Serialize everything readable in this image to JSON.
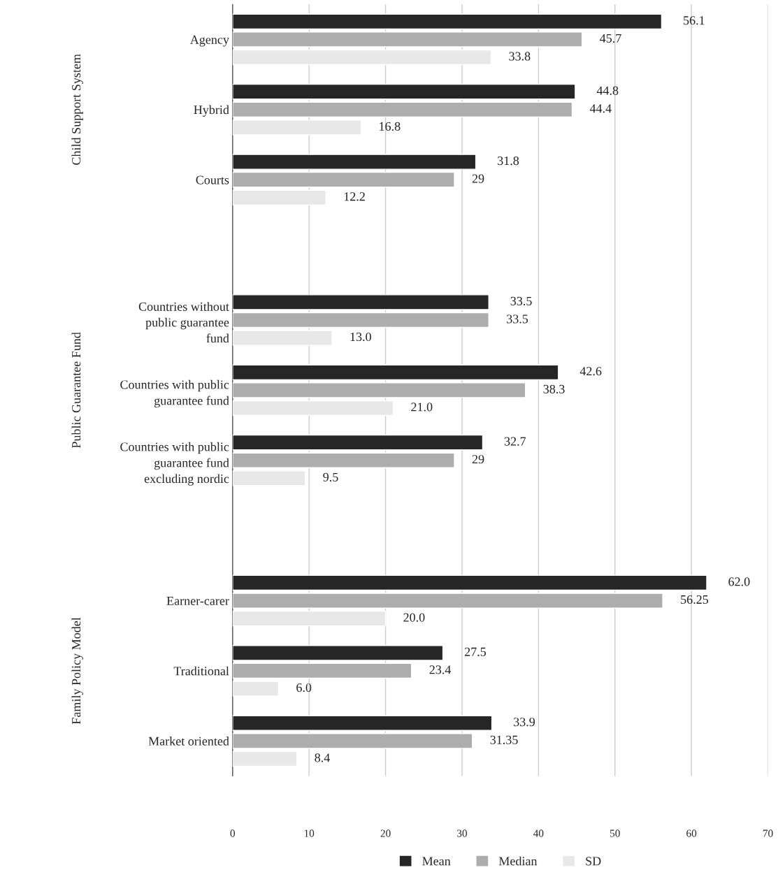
{
  "chart_data": {
    "type": "bar",
    "orientation": "horizontal",
    "categories": [
      "Agency",
      "Hybrid",
      "Courts",
      null,
      "Countries without\npublic guarantee\nfund",
      "Countries with public\nguarantee fund",
      "Countries with public\nguarantee fund\nexcluding nordic",
      null,
      "Earner-carer",
      "Traditional",
      "Market oriented"
    ],
    "series": [
      {
        "name": "Mean",
        "color": "#262626",
        "values": [
          56.1,
          44.8,
          31.8,
          null,
          33.5,
          42.6,
          32.7,
          null,
          62.0,
          27.5,
          33.9
        ],
        "value_labels": [
          "56.1",
          "44.8",
          "31.8",
          null,
          "33.5",
          "42.6",
          "32.7",
          null,
          "62.0",
          "27.5",
          "33.9"
        ]
      },
      {
        "name": "Median",
        "color": "#adadad",
        "values": [
          45.7,
          44.4,
          29,
          null,
          33.5,
          38.3,
          29,
          null,
          56.25,
          23.4,
          31.35
        ],
        "value_labels": [
          "45.7",
          "44.4",
          "29",
          null,
          "33.5",
          "38.3",
          "29",
          null,
          "56.25",
          "23.4",
          "31.35"
        ]
      },
      {
        "name": "SD",
        "color": "#e8e8e8",
        "values": [
          33.8,
          16.8,
          12.2,
          null,
          13.0,
          21.0,
          9.5,
          null,
          20.0,
          6.0,
          8.4
        ],
        "value_labels": [
          "33.8",
          "16.8",
          "12.2",
          null,
          "13.0",
          "21.0",
          "9.5",
          null,
          "20.0",
          "6.0",
          "8.4"
        ]
      }
    ],
    "xlim": [
      0,
      70
    ],
    "xticks": [
      0,
      10,
      20,
      30,
      40,
      50,
      60,
      70
    ],
    "grid": "x",
    "legend": "bottom",
    "annotations": [
      "Child Support System",
      "Public Guarantee Fund",
      "Family Policy Model"
    ]
  }
}
